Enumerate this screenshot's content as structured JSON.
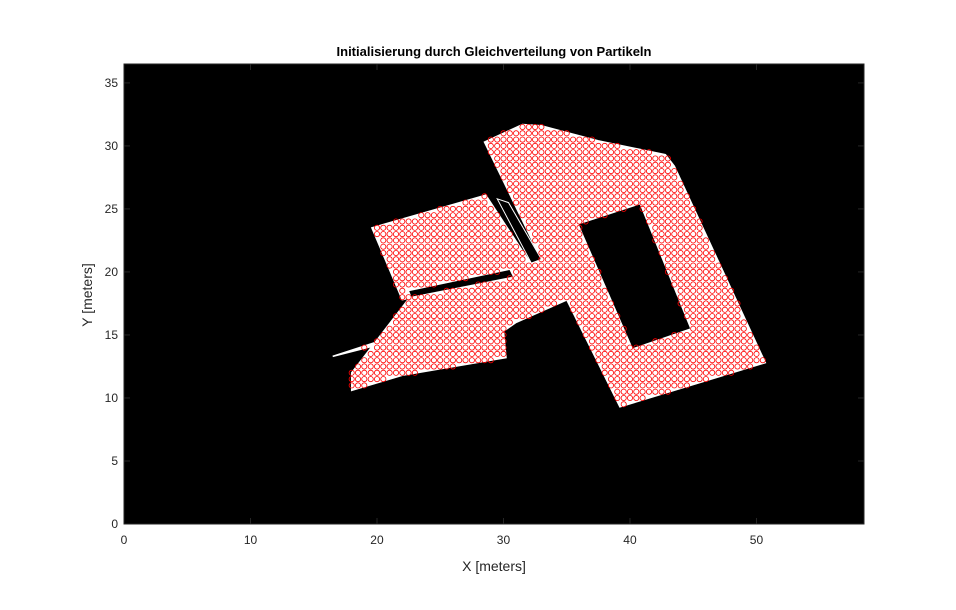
{
  "chart_data": {
    "type": "scatter",
    "title": "Initialisierung durch Gleichverteilung von Partikeln",
    "xlabel": "X [meters]",
    "ylabel": "Y [meters]",
    "xlim": [
      0,
      58.5
    ],
    "ylim": [
      0,
      36.5
    ],
    "xticks": [
      0,
      10,
      20,
      30,
      40,
      50
    ],
    "yticks": [
      0,
      5,
      10,
      15,
      20,
      25,
      30,
      35
    ],
    "grid": false,
    "background": "occupancy map (black = occupied, white = free)",
    "colors": {
      "occupied": "#000000",
      "free": "#ffffff",
      "particle": "#ff0000"
    },
    "particle_spacing": 0.5,
    "free_space_polygons": [
      [
        [
          28.5,
          30.3
        ],
        [
          31.5,
          31.7
        ],
        [
          33.0,
          31.6
        ],
        [
          37.5,
          30.4
        ],
        [
          42.8,
          29.3
        ],
        [
          43.5,
          28.4
        ],
        [
          50.7,
          12.8
        ],
        [
          39.2,
          9.3
        ],
        [
          35.0,
          17.8
        ],
        [
          29.5,
          20.8
        ],
        [
          33.0,
          21.0
        ]
      ],
      [
        [
          19.6,
          23.5
        ],
        [
          28.6,
          26.1
        ],
        [
          32.4,
          20.3
        ],
        [
          22.0,
          17.8
        ]
      ],
      [
        [
          16.5,
          13.3
        ],
        [
          22.0,
          14.7
        ],
        [
          28.8,
          17.5
        ],
        [
          30.8,
          20.0
        ],
        [
          22.5,
          18.3
        ],
        [
          22.3,
          15.2
        ]
      ],
      [
        [
          23.0,
          18.5
        ],
        [
          29.5,
          20.5
        ],
        [
          35.5,
          18.0
        ],
        [
          31.0,
          16.0
        ],
        [
          30.0,
          15.3
        ],
        [
          30.2,
          13.2
        ],
        [
          22.0,
          11.8
        ],
        [
          18.0,
          10.6
        ],
        [
          18.0,
          12.0
        ]
      ],
      [
        [
          22.5,
          18.8
        ],
        [
          28.7,
          20.0
        ],
        [
          29.8,
          16.5
        ],
        [
          23.5,
          15.0
        ]
      ]
    ],
    "obstacle_polygons": [
      [
        [
          35.9,
          23.8
        ],
        [
          40.8,
          25.4
        ],
        [
          44.8,
          15.5
        ],
        [
          40.2,
          13.9
        ]
      ],
      [
        [
          29.5,
          25.8
        ],
        [
          30.4,
          25.5
        ],
        [
          33.0,
          21.0
        ],
        [
          32.2,
          20.7
        ]
      ],
      [
        [
          22.5,
          18.5
        ],
        [
          30.5,
          20.2
        ],
        [
          30.8,
          19.6
        ],
        [
          22.7,
          18.0
        ]
      ]
    ]
  }
}
